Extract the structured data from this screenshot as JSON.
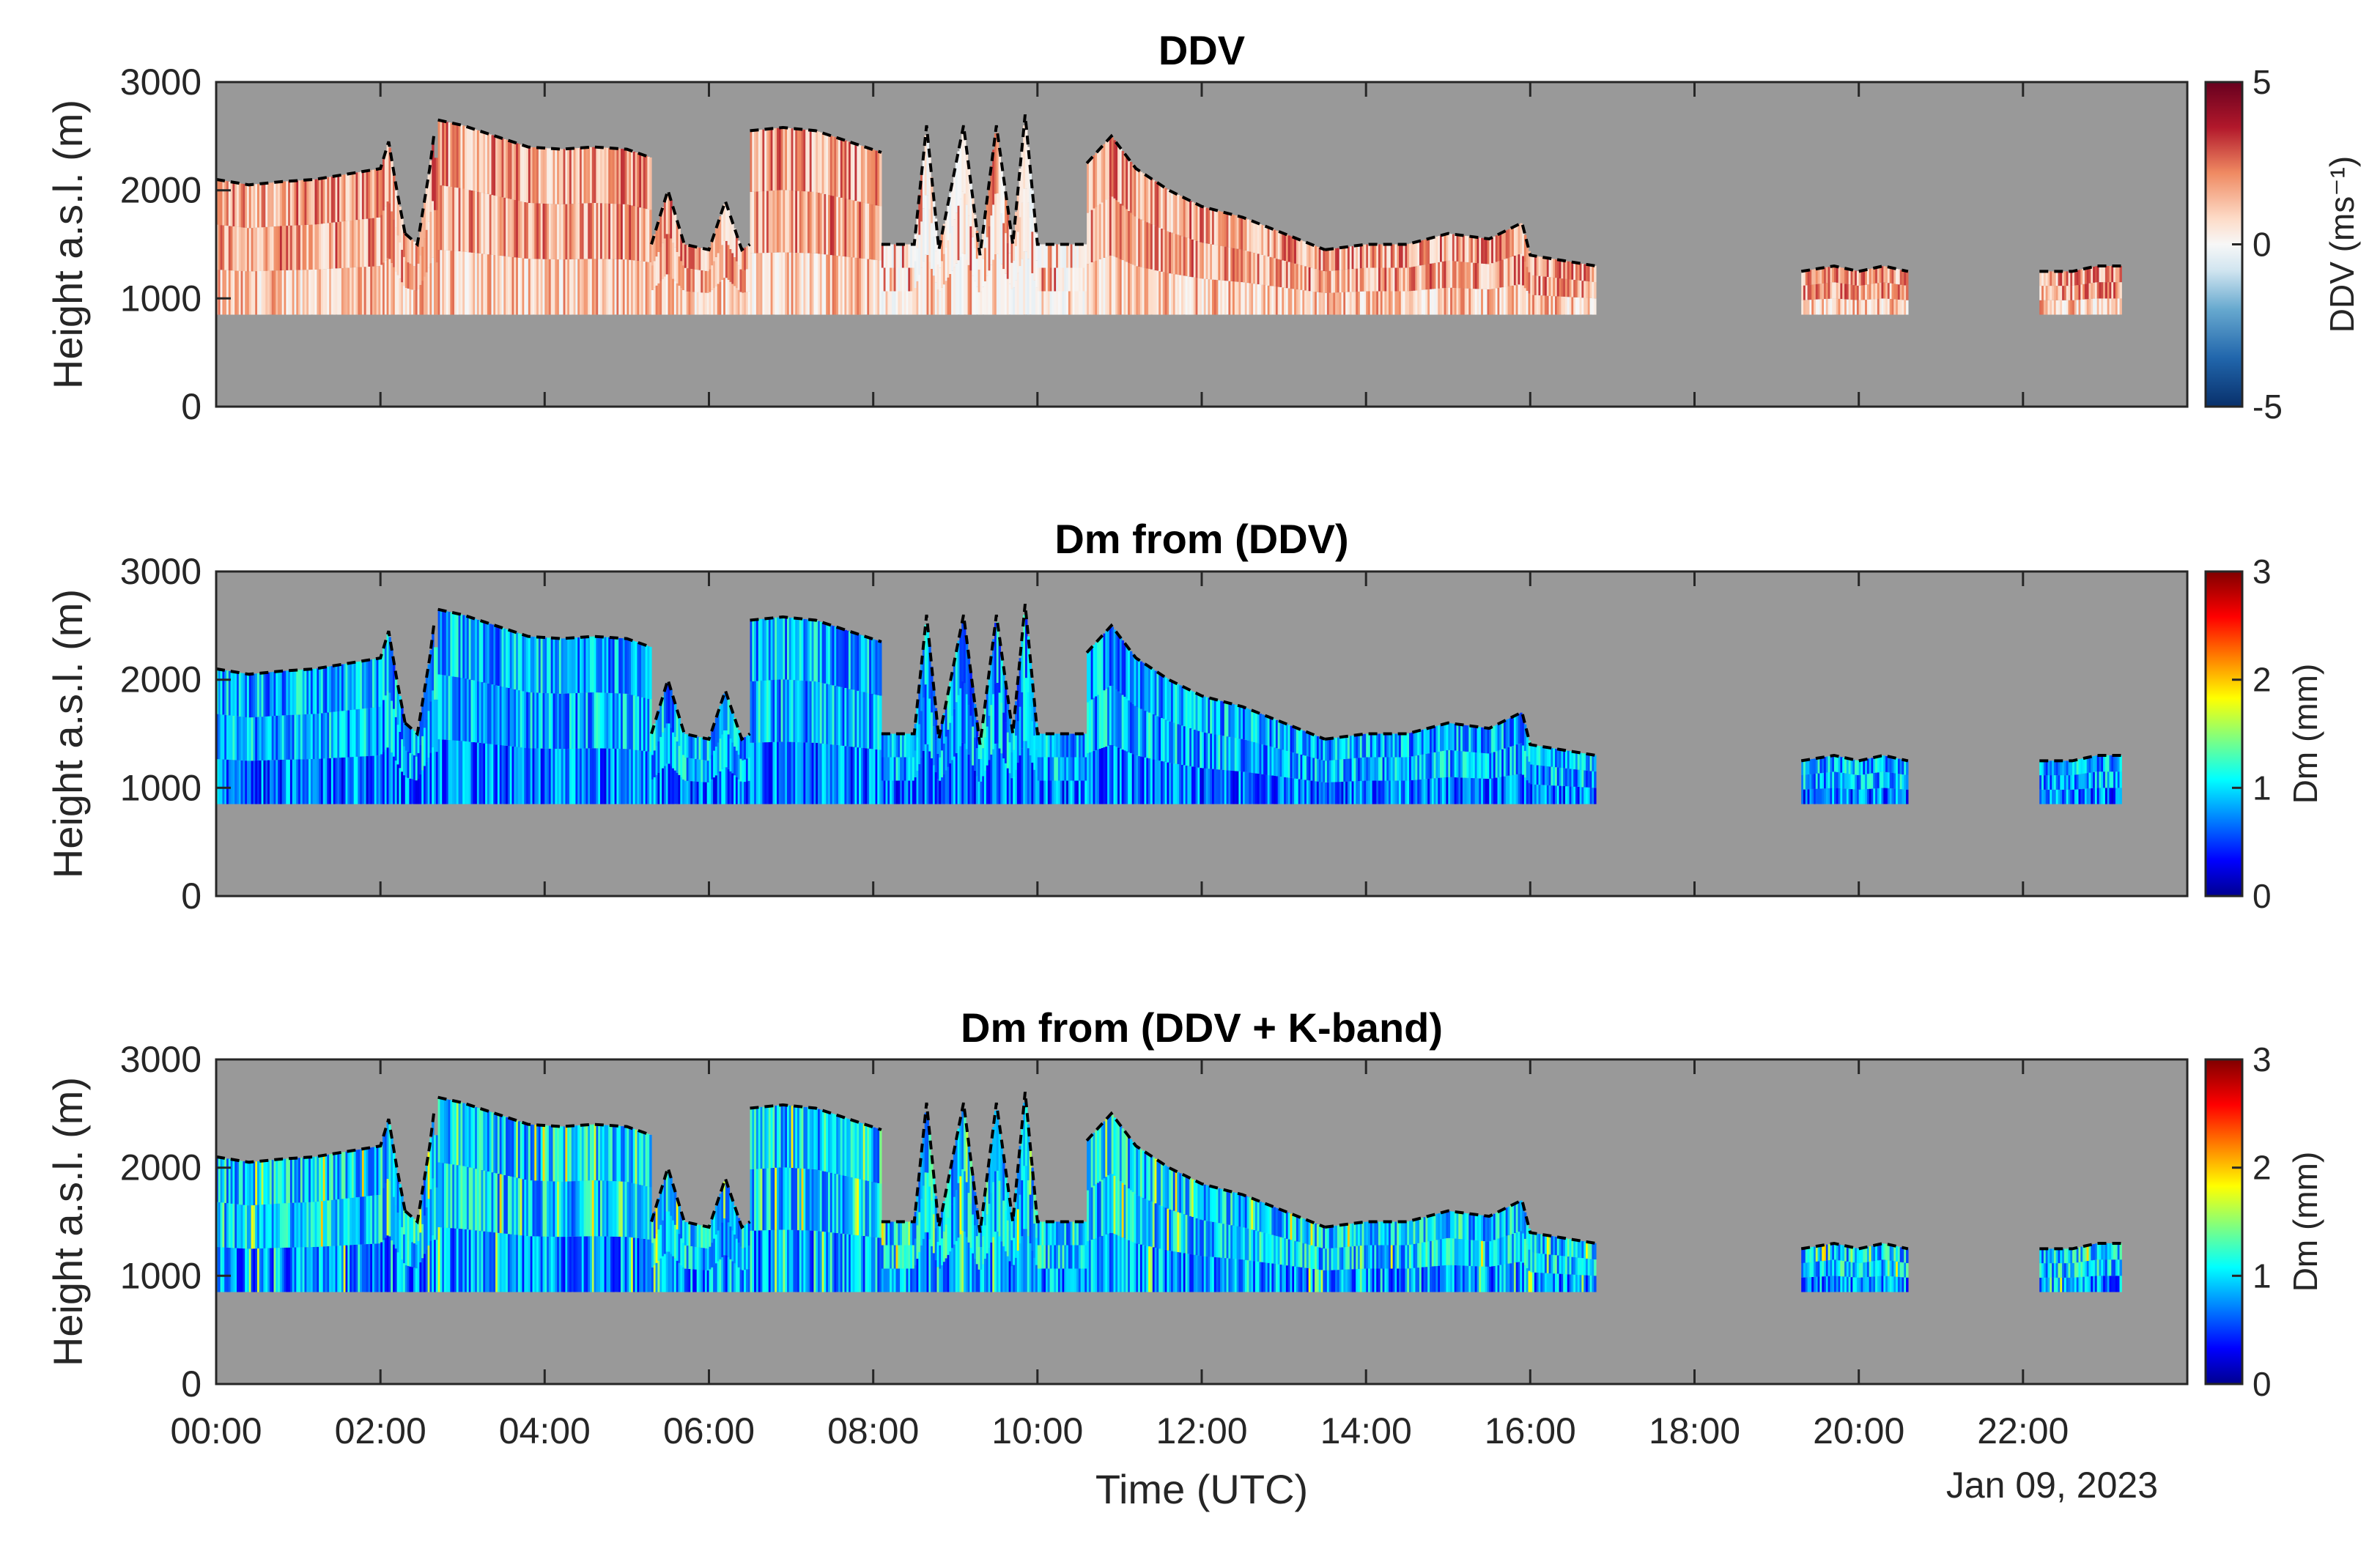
{
  "figure_date_label": "Jan 09, 2023",
  "xlabel": "Time (UTC)",
  "x_ticks": [
    "00:00",
    "02:00",
    "04:00",
    "06:00",
    "08:00",
    "10:00",
    "12:00",
    "14:00",
    "16:00",
    "18:00",
    "20:00",
    "22:00"
  ],
  "colors": {
    "background": "#999999",
    "precip_top_line": "#000000",
    "ddv_colormap": [
      "#08306b",
      "#2166ac",
      "#67a9cf",
      "#d1e5f0",
      "#f7f7f7",
      "#fddbc7",
      "#ef8a62",
      "#b2182b",
      "#67001f"
    ],
    "dm_colormap": [
      "#00008f",
      "#0000ff",
      "#0080ff",
      "#00ffff",
      "#80ff80",
      "#ffff00",
      "#ff8000",
      "#ff0000",
      "#800000"
    ]
  },
  "chart_data": [
    {
      "type": "heatmap",
      "title": "DDV",
      "xlabel": "Time (UTC)",
      "ylabel": "Height a.s.l. (m)",
      "xlim_hours": [
        0,
        24
      ],
      "ylim": [
        0,
        3000
      ],
      "y_ticks": [
        "0",
        "1000",
        "2000",
        "3000"
      ],
      "colorbar": {
        "label": "DDV (ms⁻¹)",
        "range": [
          -5,
          5
        ],
        "ticks": [
          "-5",
          "0",
          "5"
        ],
        "colormap": "diverging blue-white-red"
      },
      "typical_value": 1.5,
      "data_base_height_m": 850
    },
    {
      "type": "heatmap",
      "title": "Dm from (DDV)",
      "xlabel": "Time (UTC)",
      "ylabel": "Height a.s.l. (m)",
      "xlim_hours": [
        0,
        24
      ],
      "ylim": [
        0,
        3000
      ],
      "y_ticks": [
        "0",
        "1000",
        "2000",
        "3000"
      ],
      "colorbar": {
        "label": "Dm (mm)",
        "range": [
          0,
          3
        ],
        "ticks": [
          "0",
          "1",
          "2",
          "3"
        ],
        "colormap": "jet"
      },
      "typical_value": 0.9,
      "data_base_height_m": 850
    },
    {
      "type": "heatmap",
      "title": "Dm from (DDV + K-band)",
      "xlabel": "Time (UTC)",
      "ylabel": "Height a.s.l. (m)",
      "xlim_hours": [
        0,
        24
      ],
      "ylim": [
        0,
        3000
      ],
      "y_ticks": [
        "0",
        "1000",
        "2000",
        "3000"
      ],
      "colorbar": {
        "label": "Dm (mm)",
        "range": [
          0,
          3
        ],
        "ticks": [
          "0",
          "1",
          "2",
          "3"
        ],
        "colormap": "jet"
      },
      "typical_value": 1.0,
      "data_base_height_m": 850
    }
  ],
  "precip_top_height_profile": {
    "description": "Dashed black line: top of precipitation layer (m) vs time (hours UTC)",
    "segments": [
      {
        "start": 0.0,
        "end": 2.3,
        "points": [
          [
            0.0,
            2100
          ],
          [
            0.4,
            2050
          ],
          [
            0.8,
            2080
          ],
          [
            1.2,
            2100
          ],
          [
            1.6,
            2150
          ],
          [
            2.0,
            2200
          ],
          [
            2.1,
            2450
          ],
          [
            2.2,
            2000
          ],
          [
            2.3,
            1600
          ]
        ]
      },
      {
        "start": 2.3,
        "end": 2.65,
        "points": [
          [
            2.3,
            1600
          ],
          [
            2.45,
            1500
          ],
          [
            2.6,
            2200
          ],
          [
            2.65,
            2500
          ]
        ]
      },
      {
        "start": 2.65,
        "end": 5.3,
        "points": [
          [
            2.7,
            2650
          ],
          [
            3.0,
            2600
          ],
          [
            3.4,
            2500
          ],
          [
            3.8,
            2400
          ],
          [
            4.2,
            2380
          ],
          [
            4.6,
            2400
          ],
          [
            5.0,
            2380
          ],
          [
            5.3,
            2300
          ]
        ]
      },
      {
        "start": 5.3,
        "end": 6.5,
        "points": [
          [
            5.3,
            1500
          ],
          [
            5.5,
            2000
          ],
          [
            5.7,
            1500
          ],
          [
            6.0,
            1450
          ],
          [
            6.2,
            1900
          ],
          [
            6.4,
            1450
          ],
          [
            6.5,
            1500
          ]
        ]
      },
      {
        "start": 6.5,
        "end": 8.1,
        "points": [
          [
            6.5,
            2550
          ],
          [
            6.9,
            2580
          ],
          [
            7.3,
            2550
          ],
          [
            7.7,
            2450
          ],
          [
            8.1,
            2350
          ]
        ]
      },
      {
        "start": 8.1,
        "end": 10.6,
        "points": [
          [
            8.1,
            1500
          ],
          [
            8.5,
            1500
          ],
          [
            8.65,
            2600
          ],
          [
            8.8,
            1450
          ],
          [
            9.1,
            2600
          ],
          [
            9.3,
            1400
          ],
          [
            9.5,
            2600
          ],
          [
            9.7,
            1500
          ],
          [
            9.85,
            2700
          ],
          [
            10.0,
            1500
          ],
          [
            10.3,
            1500
          ],
          [
            10.6,
            1500
          ]
        ]
      },
      {
        "start": 10.6,
        "end": 13.5,
        "points": [
          [
            10.6,
            2250
          ],
          [
            10.9,
            2500
          ],
          [
            11.2,
            2200
          ],
          [
            11.6,
            2000
          ],
          [
            12.0,
            1850
          ],
          [
            12.5,
            1750
          ],
          [
            13.0,
            1600
          ],
          [
            13.5,
            1450
          ]
        ]
      },
      {
        "start": 13.5,
        "end": 16.8,
        "points": [
          [
            13.5,
            1450
          ],
          [
            14.0,
            1500
          ],
          [
            14.5,
            1500
          ],
          [
            15.0,
            1600
          ],
          [
            15.5,
            1550
          ],
          [
            15.9,
            1700
          ],
          [
            16.0,
            1400
          ],
          [
            16.8,
            1300
          ]
        ]
      },
      {
        "start": 19.3,
        "end": 20.6,
        "points": [
          [
            19.3,
            1250
          ],
          [
            19.7,
            1300
          ],
          [
            20.0,
            1250
          ],
          [
            20.3,
            1300
          ],
          [
            20.6,
            1250
          ]
        ]
      },
      {
        "start": 22.2,
        "end": 23.2,
        "points": [
          [
            22.2,
            1250
          ],
          [
            22.6,
            1250
          ],
          [
            22.9,
            1300
          ],
          [
            23.2,
            1300
          ]
        ]
      }
    ]
  }
}
